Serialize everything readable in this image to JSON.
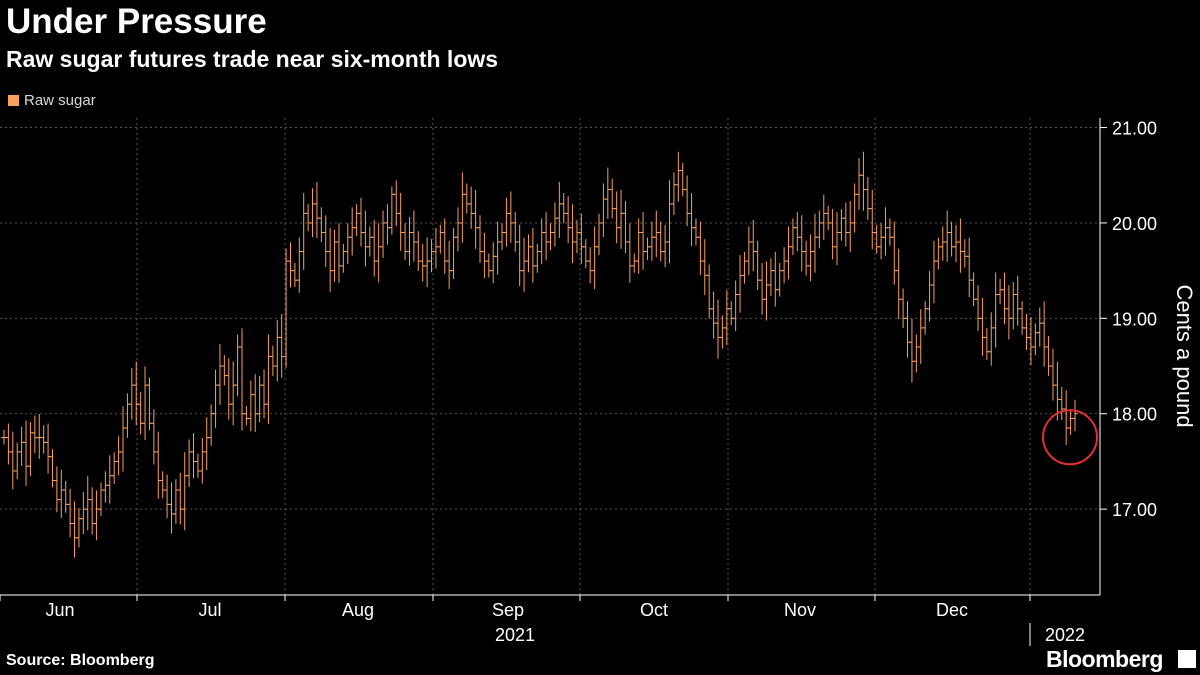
{
  "header": {
    "title": "Under Pressure",
    "subtitle": "Raw sugar futures trade near six-month lows"
  },
  "footer": {
    "source": "Source: Bloomberg",
    "brand": "Bloomberg"
  },
  "colors": {
    "series": "#f7a15a",
    "grid": "#555555",
    "highlight": "#e03030",
    "background": "#000000"
  },
  "chart_data": {
    "type": "ohlc",
    "ylabel": "Cents a pound",
    "ylim": [
      16.1,
      21.1
    ],
    "yticks": [
      17,
      18,
      19,
      20,
      21
    ],
    "ytick_labels": [
      "17.00",
      "18.00",
      "19.00",
      "20.00",
      "21.00"
    ],
    "grid": true,
    "legend": {
      "position": "top-left",
      "entries": [
        "Raw sugar"
      ]
    },
    "x_month_labels": [
      "Jun",
      "Jul",
      "Aug",
      "Sep",
      "Oct",
      "Nov",
      "Dec"
    ],
    "year_labels": [
      "2021",
      "2022"
    ],
    "highlight": {
      "type": "circle",
      "near_value": 17.9,
      "description": "latest close"
    },
    "series": [
      {
        "name": "Raw sugar",
        "close": [
          17.75,
          17.6,
          17.4,
          17.6,
          17.7,
          17.45,
          17.8,
          17.75,
          17.75,
          17.7,
          17.55,
          17.3,
          17.1,
          17.2,
          17.05,
          16.85,
          16.7,
          16.9,
          17.0,
          17.1,
          16.85,
          17.0,
          17.2,
          17.25,
          17.35,
          17.5,
          17.6,
          17.85,
          18.1,
          18.3,
          18.1,
          17.9,
          18.3,
          17.9,
          17.6,
          17.3,
          17.2,
          17.05,
          16.95,
          17.2,
          17.0,
          17.35,
          17.6,
          17.5,
          17.4,
          17.6,
          17.75,
          18.0,
          18.3,
          18.5,
          18.4,
          18.1,
          18.3,
          18.7,
          18.0,
          17.95,
          18.2,
          18.0,
          18.3,
          18.1,
          18.6,
          18.5,
          18.8,
          18.6,
          19.6,
          19.5,
          19.4,
          19.7,
          20.1,
          20.0,
          20.2,
          20.05,
          19.9,
          19.7,
          19.5,
          19.8,
          19.55,
          19.7,
          19.85,
          19.95,
          20.1,
          19.9,
          19.75,
          19.85,
          19.6,
          19.75,
          20.0,
          19.95,
          20.3,
          20.1,
          19.9,
          19.7,
          19.9,
          19.8,
          19.6,
          19.55,
          19.6,
          19.7,
          19.75,
          19.9,
          19.6,
          19.5,
          19.85,
          20.0,
          20.3,
          20.2,
          20.1,
          19.95,
          19.7,
          19.6,
          19.5,
          19.65,
          19.8,
          19.9,
          20.1,
          20.0,
          19.8,
          19.5,
          19.6,
          19.75,
          19.55,
          19.7,
          19.9,
          19.8,
          19.9,
          20.05,
          20.2,
          20.1,
          19.95,
          19.8,
          19.9,
          19.75,
          19.6,
          19.5,
          19.75,
          20.0,
          20.25,
          20.35,
          20.15,
          19.95,
          20.1,
          19.8,
          19.55,
          19.6,
          19.9,
          19.7,
          19.75,
          19.85,
          19.9,
          19.7,
          19.8,
          20.2,
          20.4,
          20.55,
          20.35,
          20.1,
          19.95,
          19.85,
          19.6,
          19.45,
          19.1,
          18.95,
          18.8,
          18.9,
          19.1,
          19.0,
          19.25,
          19.45,
          19.6,
          19.8,
          19.7,
          19.4,
          19.2,
          19.35,
          19.5,
          19.3,
          19.5,
          19.6,
          19.75,
          19.95,
          19.85,
          19.7,
          19.55,
          19.7,
          19.85,
          20.0,
          20.1,
          20.0,
          19.75,
          19.9,
          20.05,
          19.9,
          20.0,
          20.3,
          20.5,
          20.35,
          20.15,
          19.9,
          19.75,
          19.85,
          19.95,
          19.85,
          19.5,
          19.2,
          19.0,
          18.75,
          18.55,
          18.7,
          18.9,
          19.1,
          19.35,
          19.6,
          19.75,
          19.8,
          19.9,
          19.75,
          19.8,
          19.7,
          19.65,
          19.4,
          19.2,
          19.0,
          18.8,
          18.65,
          18.9,
          19.25,
          19.3,
          19.1,
          19.0,
          19.25,
          19.1,
          18.9,
          18.8,
          18.7,
          18.85,
          18.95,
          18.7,
          18.5,
          18.3,
          18.15,
          18.05,
          17.85,
          17.95,
          18.0
        ]
      }
    ]
  }
}
